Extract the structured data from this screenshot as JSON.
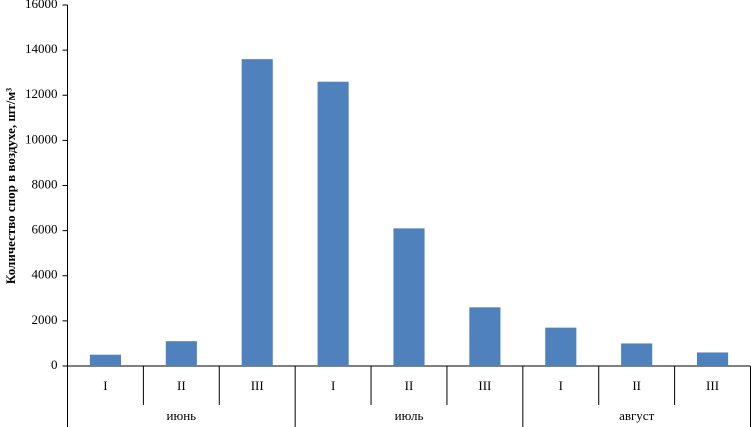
{
  "chart_data": {
    "type": "bar",
    "y_label": "Количество спор в воздухе, шт/м³",
    "categories": [
      "I",
      "II",
      "III",
      "I",
      "II",
      "III",
      "I",
      "II",
      "III"
    ],
    "groups": [
      {
        "label": "июнь",
        "size": 3
      },
      {
        "label": "июль",
        "size": 3
      },
      {
        "label": "август",
        "size": 3
      }
    ],
    "values": [
      500,
      1100,
      13600,
      12600,
      6100,
      2600,
      1700,
      1000,
      600
    ],
    "color": "#4f81bd",
    "ylim": [
      0,
      16000
    ],
    "yticks": [
      0,
      2000,
      4000,
      6000,
      8000,
      10000,
      12000,
      14000,
      16000
    ],
    "grid": false
  }
}
